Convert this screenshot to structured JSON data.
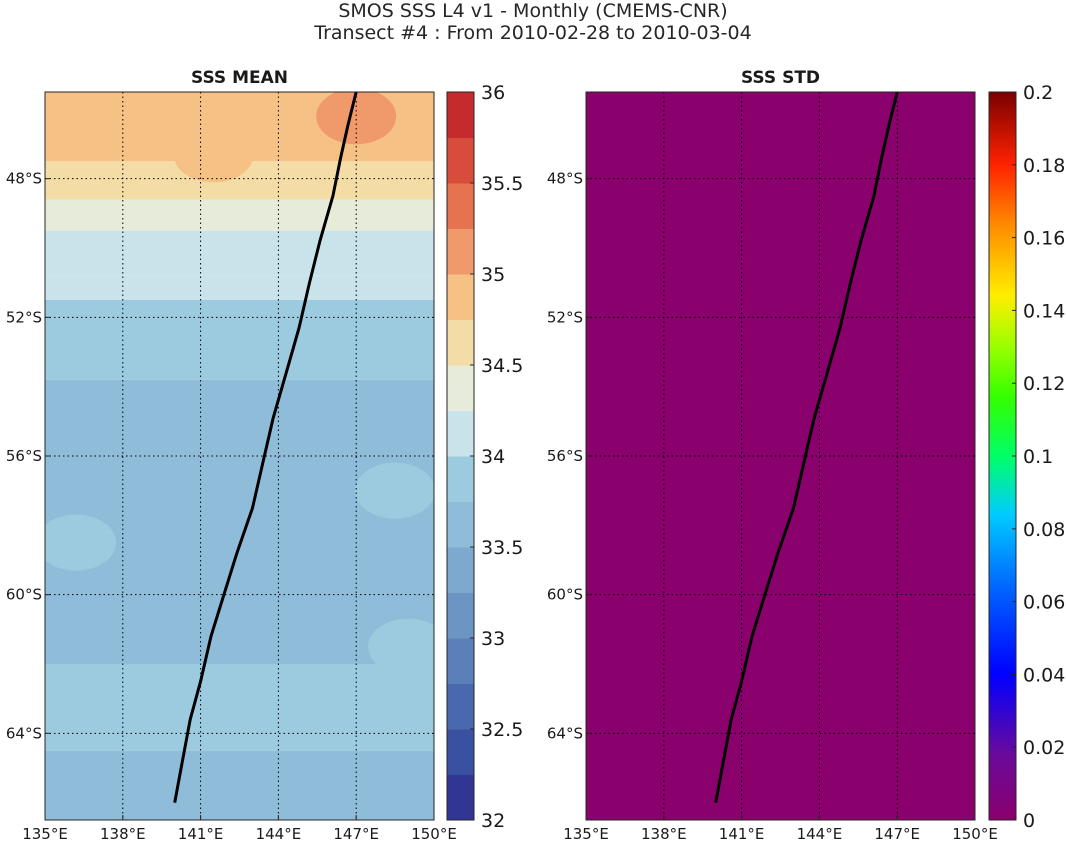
{
  "header": {
    "title": "SMOS SSS L4 v1 - Monthly (CMEMS-CNR)",
    "subtitle": "Transect #4 : From 2010-02-28 to 2010-03-04"
  },
  "region": {
    "lon_range": [
      135,
      150
    ],
    "lat_range": [
      -66.5,
      -45.5
    ]
  },
  "grid": {
    "style": "dotted",
    "color": "#000000"
  },
  "axes": {
    "x_ticks": [
      135,
      138,
      141,
      144,
      147,
      150
    ],
    "x_tick_labels": [
      "135°E",
      "138°E",
      "141°E",
      "144°E",
      "147°E",
      "150°E"
    ],
    "y_ticks": [
      -48,
      -52,
      -56,
      -60,
      -64
    ],
    "y_tick_labels": [
      "48°S",
      "52°S",
      "56°S",
      "60°S",
      "64°S"
    ]
  },
  "panels": [
    {
      "title": "SSS MEAN",
      "colormap": "RdYlBu_r (discrete)",
      "colorbar": {
        "range": [
          32,
          36
        ],
        "ticks": [
          32,
          32.5,
          33,
          33.5,
          34,
          34.5,
          35,
          35.5,
          36
        ],
        "tick_labels": [
          "32",
          "32.5",
          "33",
          "33.5",
          "34",
          "34.5",
          "35",
          "35.5",
          "36"
        ]
      }
    },
    {
      "title": "SSS STD",
      "colormap": "jet",
      "fill_color": "#8a006c",
      "colorbar": {
        "range": [
          0,
          0.2
        ],
        "ticks": [
          0,
          0.02,
          0.04,
          0.06,
          0.08,
          0.1,
          0.12,
          0.14,
          0.16,
          0.18,
          0.2
        ],
        "tick_labels": [
          "0",
          "0.02",
          "0.04",
          "0.06",
          "0.08",
          "0.1",
          "0.12",
          "0.14",
          "0.16",
          "0.18",
          "0.2"
        ]
      }
    }
  ],
  "transect": {
    "lon": [
      140.0,
      140.3,
      140.6,
      141.0,
      141.4,
      141.9,
      142.4,
      143.0,
      143.4,
      143.8,
      144.3,
      144.8,
      145.2,
      145.6,
      146.1,
      146.4,
      146.7,
      147.0
    ],
    "lat": [
      -66.0,
      -64.8,
      -63.6,
      -62.5,
      -61.2,
      -60.0,
      -58.8,
      -57.5,
      -56.2,
      -54.9,
      -53.6,
      -52.3,
      -51.0,
      -49.8,
      -48.5,
      -47.4,
      -46.4,
      -45.5
    ],
    "color": "#000000"
  },
  "sss_mean_field": {
    "zones": [
      {
        "lat_north": -45.5,
        "value": 34.9
      },
      {
        "lat_north": -47.5,
        "value": 34.6
      },
      {
        "lat_north": -48.6,
        "value": 34.4
      },
      {
        "lat_north": -49.5,
        "value": 34.2
      },
      {
        "lat_north": -50.8,
        "value": 34.0
      },
      {
        "lat_north": -51.5,
        "value": 33.9
      },
      {
        "lat_north": -53.8,
        "value": 33.7
      },
      {
        "lat_north": -62.0,
        "value": 33.8
      },
      {
        "lat_north": -64.5,
        "value": 33.7
      }
    ],
    "patches": [
      {
        "lon": 147.0,
        "lat": -46.2,
        "value": 35.1
      },
      {
        "lon": 141.5,
        "lat": -47.3,
        "value": 34.8
      },
      {
        "lon": 148.5,
        "lat": -57.0,
        "value": 33.85
      },
      {
        "lon": 136.2,
        "lat": -58.5,
        "value": 33.85
      },
      {
        "lon": 143.5,
        "lat": -62.8,
        "value": 33.85
      },
      {
        "lon": 149.0,
        "lat": -61.5,
        "value": 33.85
      }
    ]
  }
}
